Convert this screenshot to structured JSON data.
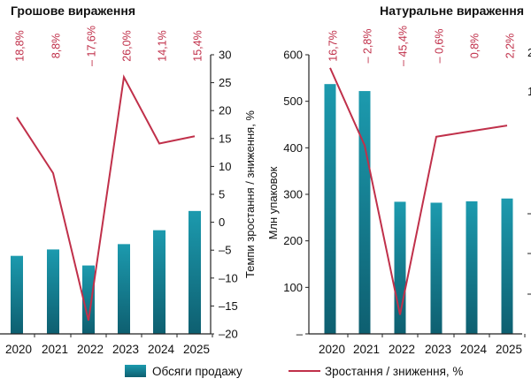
{
  "chart_data": [
    {
      "type": "bar",
      "title": "Грошове вираження",
      "categories": [
        "2020",
        "2021",
        "2022",
        "2023",
        "2024",
        "2025"
      ],
      "series": [
        {
          "name": "Обсяги продажу",
          "type": "bar",
          "values": [
            null,
            null,
            null,
            null,
            null,
            null
          ]
        },
        {
          "name": "Зростання / зниження, %",
          "type": "line",
          "values": [
            18.8,
            8.8,
            -17.6,
            26.0,
            14.1,
            15.4
          ]
        }
      ],
      "bar_relative_heights": [
        0.73,
        0.79,
        0.64,
        0.84,
        0.97,
        1.15
      ],
      "growth_labels": [
        "18,8%",
        "8,8%",
        "– 17,6%",
        "26,0%",
        "14,1%",
        "15,4%"
      ],
      "y2label": "Темпи зростання / зниження, %",
      "y2lim": [
        -20,
        30
      ],
      "y2ticks": [
        "30",
        "25",
        "20",
        "15",
        "10",
        "5",
        "0",
        "–5",
        "–10",
        "–15",
        "–20"
      ]
    },
    {
      "type": "bar",
      "title": "Натуральне вираження",
      "categories": [
        "2020",
        "2021",
        "2022",
        "2023",
        "2024",
        "2025"
      ],
      "series": [
        {
          "name": "Обсяги продажу",
          "type": "bar",
          "values": [
            537,
            522,
            284,
            282,
            285,
            291
          ]
        },
        {
          "name": "Зростання / зниження, %",
          "type": "line",
          "values": [
            16.7,
            -2.8,
            -45.4,
            -0.6,
            0.8,
            2.2
          ]
        }
      ],
      "growth_labels": [
        "16,7%",
        "– 2,8%",
        "– 45,4%",
        "– 0,6%",
        "0,8%",
        "2,2%"
      ],
      "ylabel": "Млн упаковок",
      "ylim": [
        0,
        600
      ],
      "yticks": [
        "600",
        "500",
        "400",
        "300",
        "200",
        "100",
        "–"
      ],
      "y2_partial_ticks": [
        "2",
        "1"
      ]
    }
  ],
  "legend": {
    "bar_label": "Обсяги продажу",
    "line_label": "Зростання / зниження, %"
  },
  "colors": {
    "bar_top": "#1c9aae",
    "bar_bottom": "#0e5f70",
    "line": "#c0304a",
    "axis": "#222222"
  }
}
